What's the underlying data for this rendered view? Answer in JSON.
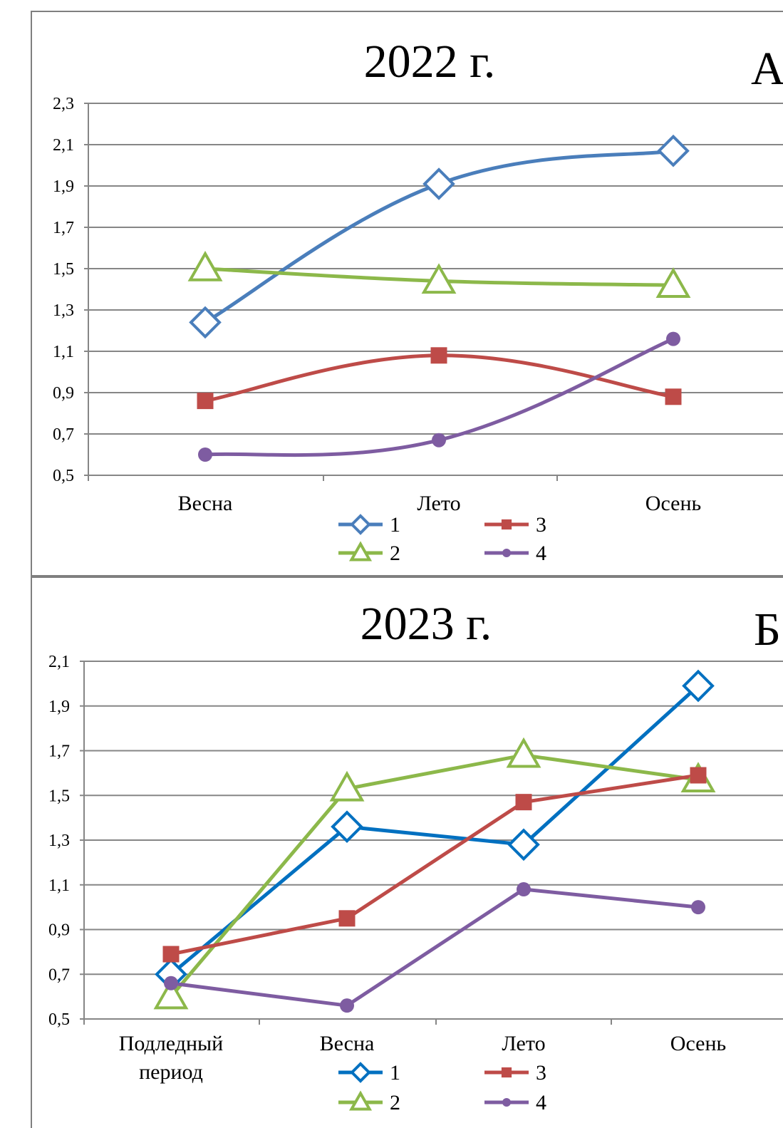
{
  "chart_data": [
    {
      "type": "line",
      "title": "2022 г.",
      "panel_label": "А",
      "categories": [
        "Весна",
        "Лето",
        "Осень"
      ],
      "ylim": [
        0.5,
        2.3
      ],
      "yticks": [
        "0,5",
        "0,7",
        "0,9",
        "1,1",
        "1,3",
        "1,5",
        "1,7",
        "1,9",
        "2,1",
        "2,3"
      ],
      "grid": true,
      "legend_position": "bottom",
      "series": [
        {
          "name": "1",
          "values": [
            1.24,
            1.91,
            2.07
          ],
          "color": "#4a7ebb",
          "marker": "diamond",
          "smooth": true
        },
        {
          "name": "2",
          "values": [
            1.5,
            1.44,
            1.42
          ],
          "color": "#8cb84a",
          "marker": "triangle",
          "smooth": true
        },
        {
          "name": "3",
          "values": [
            0.86,
            1.08,
            0.88
          ],
          "color": "#be4b48",
          "marker": "square",
          "smooth": true
        },
        {
          "name": "4",
          "values": [
            0.6,
            0.67,
            1.16
          ],
          "color": "#7e5ca1",
          "marker": "circle",
          "smooth": true
        }
      ]
    },
    {
      "type": "line",
      "title": "2023 г.",
      "panel_label": "Б",
      "categories": [
        "Подледный период",
        "Весна",
        "Лето",
        "Осень"
      ],
      "ylim": [
        0.5,
        2.1
      ],
      "yticks": [
        "0,5",
        "0,7",
        "0,9",
        "1,1",
        "1,3",
        "1,5",
        "1,7",
        "1,9",
        "2,1"
      ],
      "grid": true,
      "legend_position": "bottom",
      "series": [
        {
          "name": "1",
          "values": [
            0.7,
            1.36,
            1.28,
            1.99
          ],
          "color": "#0070c0",
          "marker": "diamond",
          "smooth": false
        },
        {
          "name": "2",
          "values": [
            0.6,
            1.53,
            1.68,
            1.57
          ],
          "color": "#8cb84a",
          "marker": "triangle",
          "smooth": false
        },
        {
          "name": "3",
          "values": [
            0.79,
            0.95,
            1.47,
            1.59
          ],
          "color": "#be4b48",
          "marker": "square",
          "smooth": false
        },
        {
          "name": "4",
          "values": [
            0.66,
            0.56,
            1.08,
            1.0
          ],
          "color": "#7e5ca1",
          "marker": "circle",
          "smooth": false
        }
      ]
    }
  ]
}
